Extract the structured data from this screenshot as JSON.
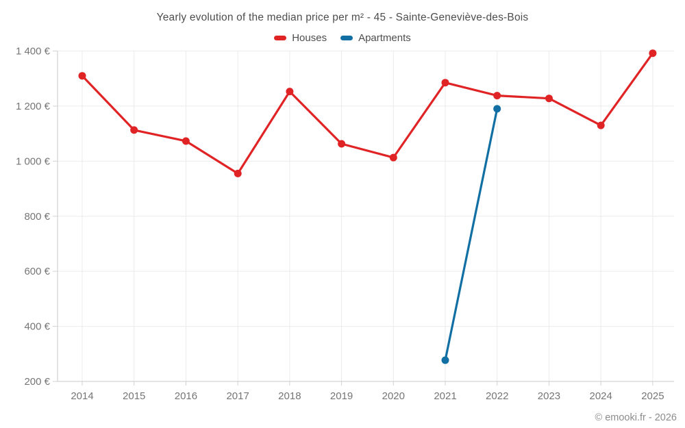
{
  "title": "Yearly evolution of the median price per m² - 45 - Sainte-Geneviève-des-Bois",
  "footer": "© emooki.fr - 2026",
  "colors": {
    "houses": "#e02426",
    "apartments": "#116fa3",
    "grid": "#ebebeb",
    "axis": "#c9c9c9",
    "tick": "#d2d2d2",
    "axis_text": "#757575",
    "title_text": "#4d4d4d",
    "footer_text": "#8c8c8c"
  },
  "chart_data": {
    "type": "line",
    "title": "Yearly evolution of the median price per m² - 45 - Sainte-Geneviève-des-Bois",
    "xlabel": "",
    "ylabel": "",
    "x": [
      2014,
      2015,
      2016,
      2017,
      2018,
      2019,
      2020,
      2021,
      2022,
      2023,
      2024,
      2025
    ],
    "series": [
      {
        "name": "Houses",
        "color": "#e02426",
        "values": [
          1310,
          1113,
          1073,
          955,
          1253,
          1063,
          1013,
          1285,
          1238,
          1228,
          1130,
          1392
        ]
      },
      {
        "name": "Apartments",
        "color": "#116fa3",
        "values": [
          null,
          null,
          null,
          null,
          null,
          null,
          null,
          277,
          1190,
          null,
          null,
          null
        ]
      }
    ],
    "ylim": [
      200,
      1400
    ],
    "yticks": [
      {
        "value": 1400,
        "label": "1 400 €"
      },
      {
        "value": 1200,
        "label": "1 200 €"
      },
      {
        "value": 1000,
        "label": "1 000 €"
      },
      {
        "value": 800,
        "label": "800 €"
      },
      {
        "value": 600,
        "label": "600 €"
      },
      {
        "value": 400,
        "label": "400 €"
      },
      {
        "value": 200,
        "label": "200 €"
      }
    ],
    "grid": true,
    "legend_position": "top",
    "legend_entries": [
      "Houses",
      "Apartments"
    ]
  }
}
